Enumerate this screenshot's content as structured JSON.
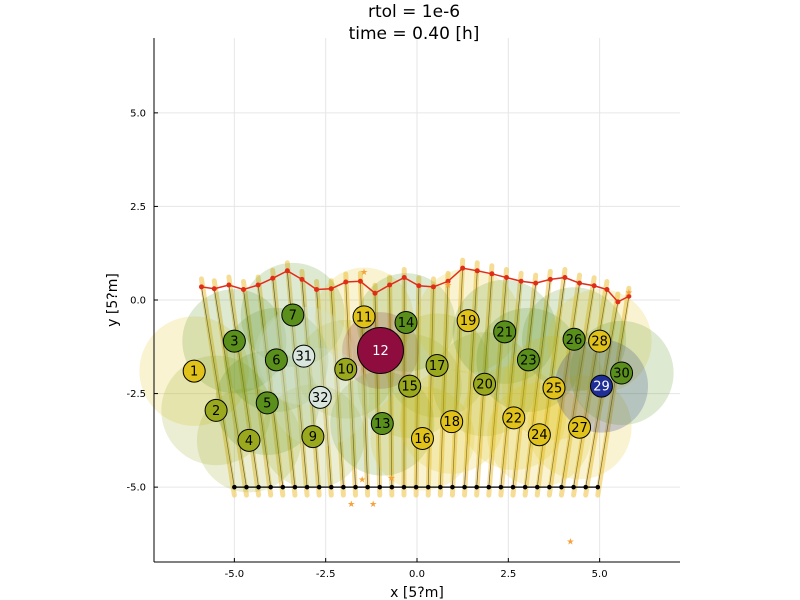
{
  "chart_data": {
    "type": "scatter",
    "title_lines": [
      "rtol = 1e-6",
      "time = 0.40 [h]"
    ],
    "xlabel": "x [5?m]",
    "ylabel": "y [5?m]",
    "xlim": [
      -7.2,
      7.2
    ],
    "ylim": [
      -7.0,
      7.0
    ],
    "x_ticks": [
      -5.0,
      -2.5,
      0.0,
      2.5,
      5.0
    ],
    "x_tick_labels": [
      "-5.0",
      "-2.5",
      "0.0",
      "2.5",
      "5.0"
    ],
    "y_ticks": [
      -5.0,
      -2.5,
      0.0,
      2.5,
      5.0
    ],
    "y_tick_labels": [
      "-5.0",
      "-2.5",
      "0.0",
      "2.5",
      "5.0"
    ],
    "grid": true,
    "colors": {
      "yellow": "#e0c21a",
      "olive": "#9aa81e",
      "green": "#5a8f1c",
      "pale": "#d8e6de",
      "maroon": "#8e0c3e",
      "navy": "#1f2f96",
      "fiber": "#f2cf6a",
      "apical": "#e02d1a",
      "basal": "#000000",
      "marker": "#f5a23a"
    },
    "cells": [
      {
        "id": "1",
        "x": -6.1,
        "y": -1.9,
        "r": 1.0,
        "color": "yellow"
      },
      {
        "id": "2",
        "x": -5.5,
        "y": -2.95,
        "r": 1.0,
        "color": "olive"
      },
      {
        "id": "3",
        "x": -5.0,
        "y": -1.1,
        "r": 0.95,
        "color": "green"
      },
      {
        "id": "4",
        "x": -4.6,
        "y": -3.75,
        "r": 0.95,
        "color": "olive"
      },
      {
        "id": "5",
        "x": -4.1,
        "y": -2.75,
        "r": 0.95,
        "color": "green"
      },
      {
        "id": "6",
        "x": -3.85,
        "y": -1.6,
        "r": 0.95,
        "color": "green"
      },
      {
        "id": "7",
        "x": -3.4,
        "y": -0.4,
        "r": 0.95,
        "color": "green"
      },
      {
        "id": "8",
        "x": -3.0,
        "y": -1.5,
        "r": 0.9,
        "color": "pale",
        "hidden": true
      },
      {
        "id": "9",
        "x": -2.85,
        "y": -3.65,
        "r": 0.95,
        "color": "olive"
      },
      {
        "id": "10",
        "x": -1.95,
        "y": -1.85,
        "r": 0.9,
        "color": "olive"
      },
      {
        "id": "11",
        "x": -1.45,
        "y": -0.45,
        "r": 0.9,
        "color": "yellow"
      },
      {
        "id": "12",
        "x": -1.0,
        "y": -1.35,
        "r": 0.7,
        "color": "maroon"
      },
      {
        "id": "13",
        "x": -0.95,
        "y": -3.3,
        "r": 0.95,
        "color": "green"
      },
      {
        "id": "14",
        "x": -0.3,
        "y": -0.6,
        "r": 0.9,
        "color": "green"
      },
      {
        "id": "15",
        "x": -0.2,
        "y": -2.3,
        "r": 0.95,
        "color": "olive"
      },
      {
        "id": "16",
        "x": 0.15,
        "y": -3.7,
        "r": 0.95,
        "color": "yellow"
      },
      {
        "id": "17",
        "x": 0.55,
        "y": -1.75,
        "r": 0.95,
        "color": "olive"
      },
      {
        "id": "18",
        "x": 0.95,
        "y": -3.25,
        "r": 0.95,
        "color": "yellow"
      },
      {
        "id": "19",
        "x": 1.4,
        "y": -0.55,
        "r": 0.95,
        "color": "yellow"
      },
      {
        "id": "20",
        "x": 1.85,
        "y": -2.25,
        "r": 0.95,
        "color": "olive"
      },
      {
        "id": "21",
        "x": 2.4,
        "y": -0.85,
        "r": 0.95,
        "color": "green"
      },
      {
        "id": "22",
        "x": 2.65,
        "y": -3.15,
        "r": 0.95,
        "color": "yellow"
      },
      {
        "id": "23",
        "x": 3.05,
        "y": -1.6,
        "r": 0.95,
        "color": "green"
      },
      {
        "id": "24",
        "x": 3.35,
        "y": -3.6,
        "r": 0.95,
        "color": "yellow"
      },
      {
        "id": "25",
        "x": 3.75,
        "y": -2.35,
        "r": 0.95,
        "color": "yellow"
      },
      {
        "id": "26",
        "x": 4.3,
        "y": -1.05,
        "r": 0.95,
        "color": "green"
      },
      {
        "id": "27",
        "x": 4.45,
        "y": -3.4,
        "r": 0.95,
        "color": "yellow"
      },
      {
        "id": "28",
        "x": 5.0,
        "y": -1.1,
        "r": 0.95,
        "color": "yellow"
      },
      {
        "id": "29",
        "x": 5.05,
        "y": -2.3,
        "r": 0.85,
        "color": "navy"
      },
      {
        "id": "30",
        "x": 5.6,
        "y": -1.95,
        "r": 0.95,
        "color": "green"
      },
      {
        "id": "31",
        "x": -3.1,
        "y": -1.5,
        "r": 0.9,
        "color": "pale"
      },
      {
        "id": "32",
        "x": -2.65,
        "y": -2.6,
        "r": 0.9,
        "color": "pale"
      }
    ],
    "apical_points": [
      [
        -5.9,
        0.35
      ],
      [
        -5.55,
        0.3
      ],
      [
        -5.15,
        0.4
      ],
      [
        -4.75,
        0.28
      ],
      [
        -4.35,
        0.4
      ],
      [
        -3.95,
        0.58
      ],
      [
        -3.55,
        0.78
      ],
      [
        -3.15,
        0.55
      ],
      [
        -2.75,
        0.28
      ],
      [
        -2.35,
        0.3
      ],
      [
        -1.95,
        0.48
      ],
      [
        -1.55,
        0.5
      ],
      [
        -1.15,
        0.18
      ],
      [
        -0.75,
        0.4
      ],
      [
        -0.35,
        0.6
      ],
      [
        0.05,
        0.38
      ],
      [
        0.45,
        0.35
      ],
      [
        0.85,
        0.5
      ],
      [
        1.25,
        0.85
      ],
      [
        1.65,
        0.78
      ],
      [
        2.05,
        0.7
      ],
      [
        2.45,
        0.6
      ],
      [
        2.85,
        0.5
      ],
      [
        3.25,
        0.45
      ],
      [
        3.65,
        0.55
      ],
      [
        4.05,
        0.6
      ],
      [
        4.45,
        0.45
      ],
      [
        4.85,
        0.38
      ],
      [
        5.2,
        0.28
      ],
      [
        5.5,
        -0.05
      ],
      [
        5.8,
        0.1
      ]
    ],
    "basal_x_start": -5.0,
    "basal_x_end": 4.95,
    "basal_y": -5.0,
    "basal_count": 31,
    "extra_markers": [
      [
        -1.8,
        -5.45
      ],
      [
        -1.2,
        -5.45
      ],
      [
        -1.5,
        -4.8
      ],
      [
        4.2,
        -6.45
      ],
      [
        -1.45,
        0.75
      ],
      [
        0.85,
        0.4
      ],
      [
        5.8,
        0.2
      ],
      [
        -0.7,
        -4.75
      ]
    ]
  }
}
